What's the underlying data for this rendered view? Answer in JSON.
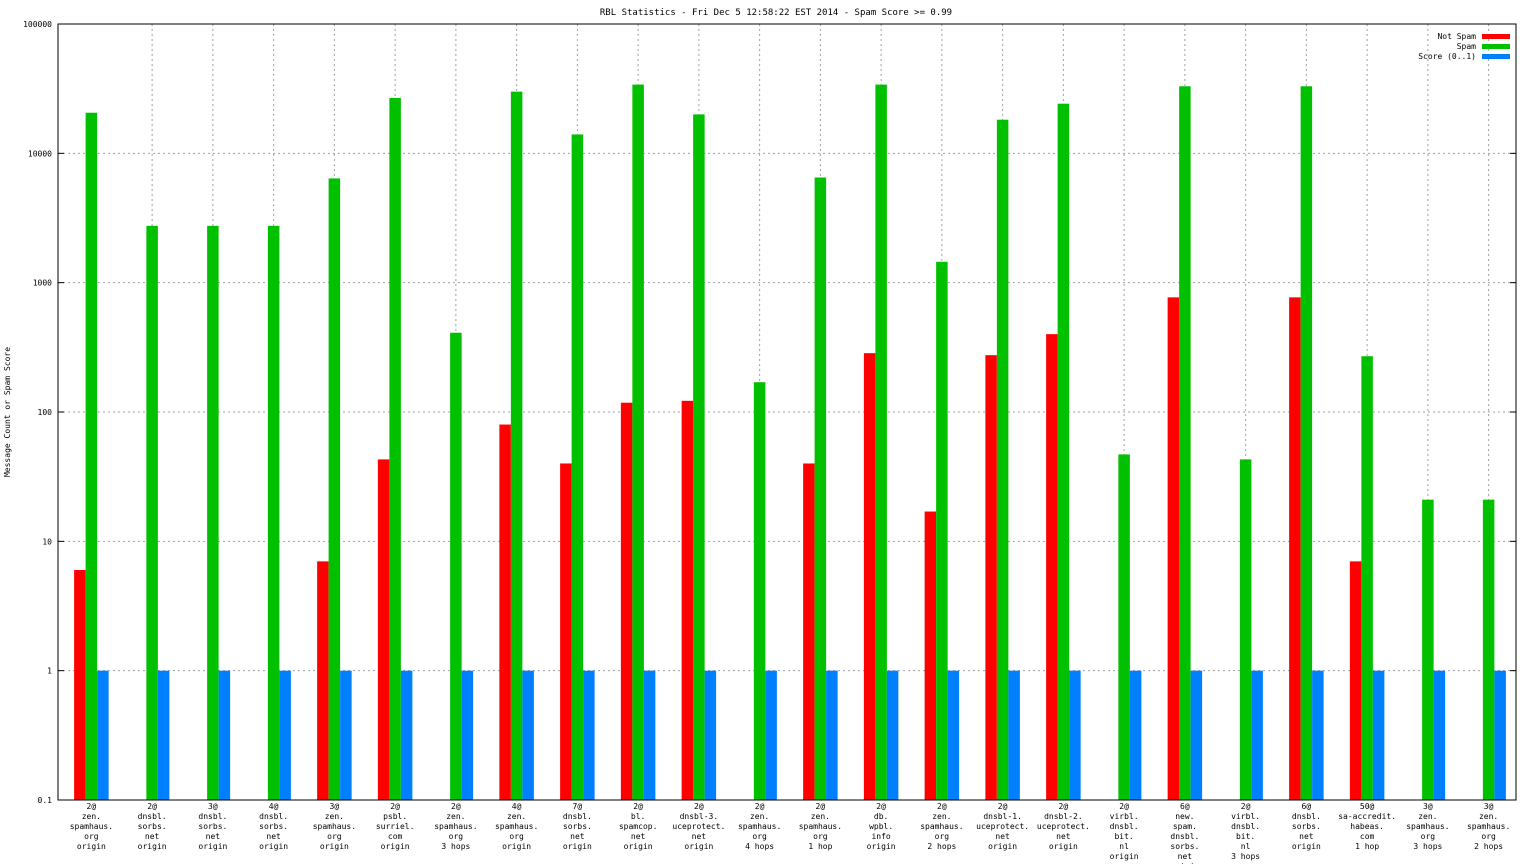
{
  "chart_data": {
    "type": "bar",
    "title": "RBL Statistics - Fri Dec  5 12:58:22 EST 2014 - Spam Score >= 0.99",
    "ylabel": "Message Count or Spam Score",
    "xlabel": "",
    "yscale": "log",
    "ylim": [
      0.1,
      100000
    ],
    "yticks": [
      "0.1",
      "1",
      "10",
      "100",
      "1000",
      "10000",
      "100000"
    ],
    "grid": true,
    "legend_position": "top-right",
    "categories": [
      [
        "2@",
        "zen.",
        "spamhaus.",
        "org",
        "origin"
      ],
      [
        "2@",
        "dnsbl.",
        "sorbs.",
        "net",
        "origin"
      ],
      [
        "3@",
        "dnsbl.",
        "sorbs.",
        "net",
        "origin"
      ],
      [
        "4@",
        "dnsbl.",
        "sorbs.",
        "net",
        "origin"
      ],
      [
        "3@",
        "zen.",
        "spamhaus.",
        "org",
        "origin"
      ],
      [
        "2@",
        "psbl.",
        "surriel.",
        "com",
        "origin"
      ],
      [
        "2@",
        "zen.",
        "spamhaus.",
        "org",
        "3 hops"
      ],
      [
        "4@",
        "zen.",
        "spamhaus.",
        "org",
        "origin"
      ],
      [
        "7@",
        "dnsbl.",
        "sorbs.",
        "net",
        "origin"
      ],
      [
        "2@",
        "bl.",
        "spamcop.",
        "net",
        "origin"
      ],
      [
        "2@",
        "dnsbl-3.",
        "uceprotect.",
        "net",
        "origin"
      ],
      [
        "2@",
        "zen.",
        "spamhaus.",
        "org",
        "4 hops"
      ],
      [
        "2@",
        "zen.",
        "spamhaus.",
        "org",
        "1 hop"
      ],
      [
        "2@",
        "db.",
        "wpbl.",
        "info",
        "origin"
      ],
      [
        "2@",
        "zen.",
        "spamhaus.",
        "org",
        "2 hops"
      ],
      [
        "2@",
        "dnsbl-1.",
        "uceprotect.",
        "net",
        "origin"
      ],
      [
        "2@",
        "dnsbl-2.",
        "uceprotect.",
        "net",
        "origin"
      ],
      [
        "2@",
        "virbl.",
        "dnsbl.",
        "bit.",
        "nl",
        "origin"
      ],
      [
        "6@",
        "new.",
        "spam.",
        "dnsbl.",
        "sorbs.",
        "net",
        "origin"
      ],
      [
        "2@",
        "virbl.",
        "dnsbl.",
        "bit.",
        "nl",
        "3 hops"
      ],
      [
        "6@",
        "dnsbl.",
        "sorbs.",
        "net",
        "origin"
      ],
      [
        "50@",
        "sa-accredit.",
        "habeas.",
        "com",
        "1 hop"
      ],
      [
        "3@",
        "zen.",
        "spamhaus.",
        "org",
        "3 hops"
      ],
      [
        "3@",
        "zen.",
        "spamhaus.",
        "org",
        "2 hops"
      ]
    ],
    "series": [
      {
        "name": "Not Spam",
        "color": "#ff0000",
        "values": [
          6,
          null,
          null,
          null,
          7,
          43,
          null,
          80,
          40,
          118,
          122,
          null,
          40,
          285,
          17,
          275,
          400,
          null,
          770,
          null,
          770,
          7,
          null,
          null
        ]
      },
      {
        "name": "Spam",
        "color": "#00c000",
        "values": [
          20600,
          2750,
          2750,
          2750,
          6400,
          26800,
          410,
          30000,
          14000,
          34000,
          20000,
          170,
          6500,
          34000,
          1450,
          18200,
          24200,
          47,
          33000,
          43,
          33000,
          270,
          21,
          21
        ]
      },
      {
        "name": "Score (0..1)",
        "color": "#0080ff",
        "values": [
          1,
          1,
          1,
          1,
          1,
          1,
          1,
          1,
          1,
          1,
          1,
          1,
          1,
          1,
          1,
          1,
          1,
          1,
          1,
          1,
          1,
          1,
          1,
          1
        ]
      }
    ]
  }
}
